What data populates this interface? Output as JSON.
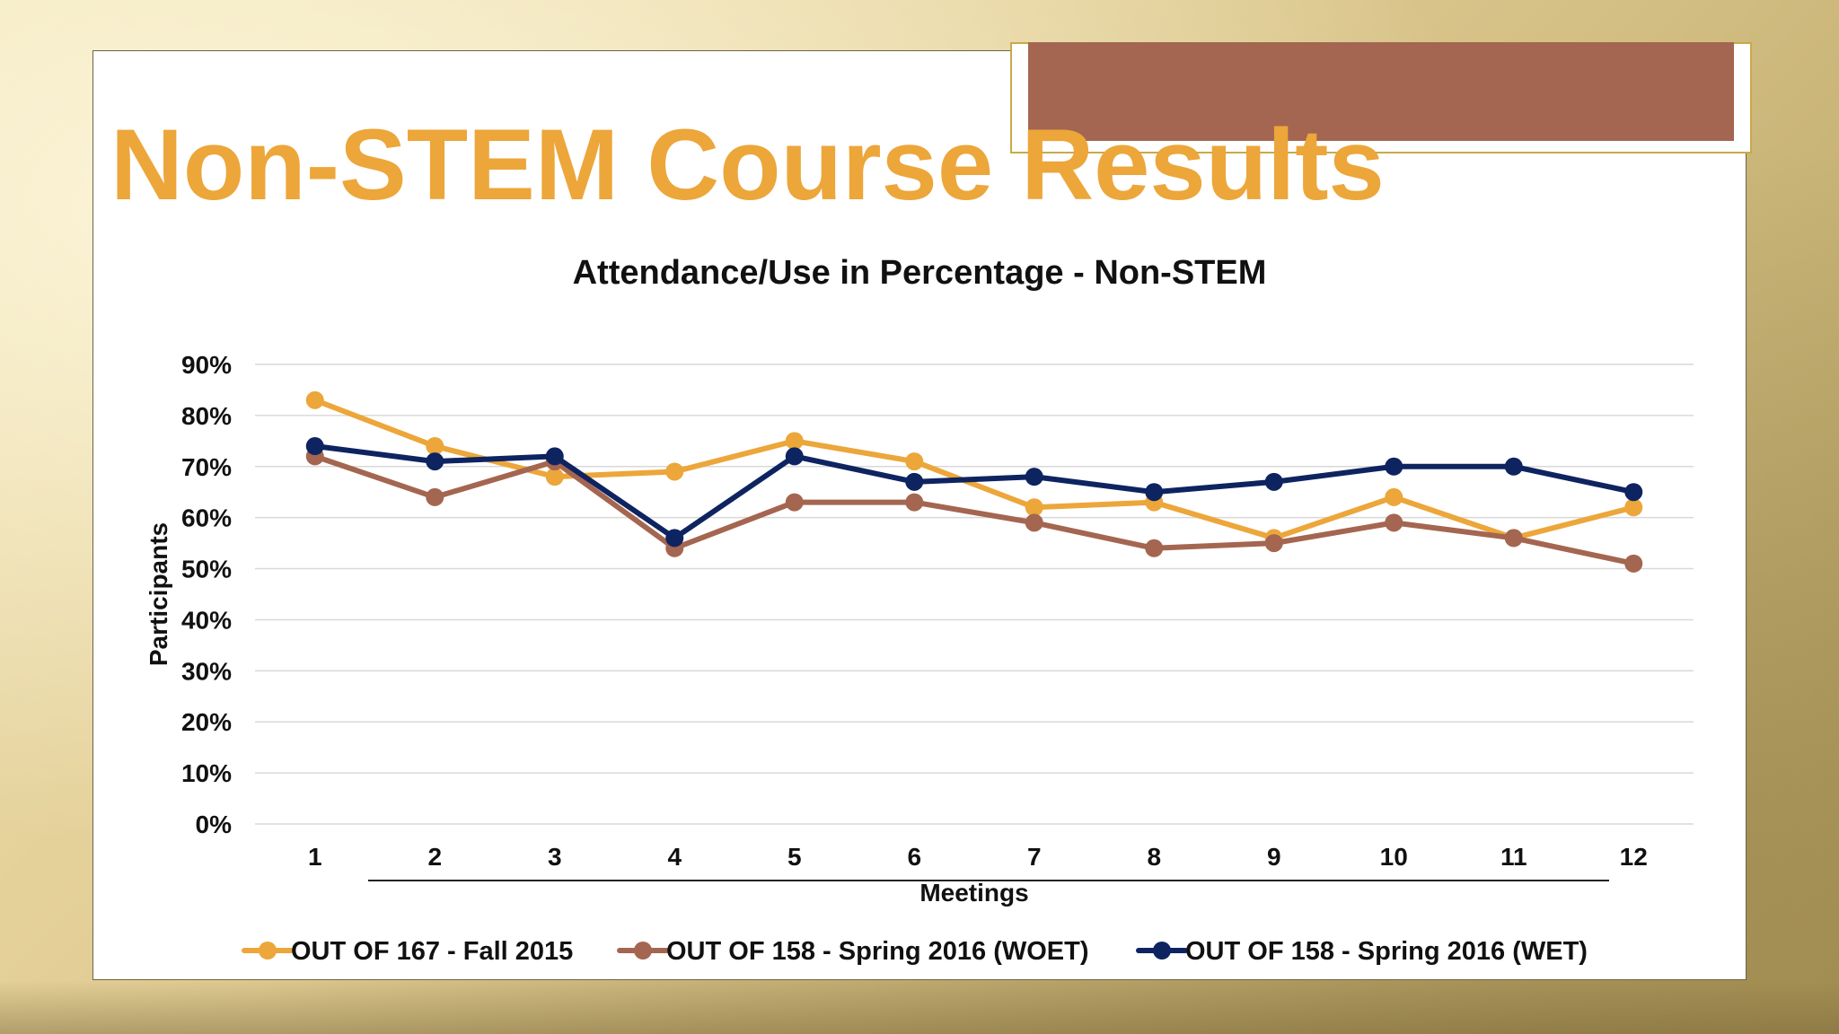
{
  "slide": {
    "title": "Non-STEM Course Results"
  },
  "colors": {
    "title": "#eca63a",
    "accent_bar": "#a46650",
    "accent_frame": "#c9a94a"
  },
  "chart_data": {
    "type": "line",
    "title": "Attendance/Use in Percentage - Non-STEM",
    "xlabel": "Meetings",
    "ylabel": "Participants",
    "categories": [
      "1",
      "2",
      "3",
      "4",
      "5",
      "6",
      "7",
      "8",
      "9",
      "10",
      "11",
      "12"
    ],
    "ylim": [
      0,
      90
    ],
    "yticks": [
      0,
      10,
      20,
      30,
      40,
      50,
      60,
      70,
      80,
      90
    ],
    "ytick_labels": [
      "0%",
      "10%",
      "20%",
      "30%",
      "40%",
      "50%",
      "60%",
      "70%",
      "80%",
      "90%"
    ],
    "grid": true,
    "legend_position": "bottom",
    "series": [
      {
        "name": "OUT OF 167 - Fall 2015",
        "color": "#eca63a",
        "values": [
          83,
          74,
          68,
          69,
          75,
          71,
          62,
          63,
          56,
          64,
          56,
          62
        ]
      },
      {
        "name": "OUT OF 158 - Spring 2016 (WOET)",
        "color": "#a46650",
        "values": [
          72,
          64,
          71,
          54,
          63,
          63,
          59,
          54,
          55,
          59,
          56,
          51
        ]
      },
      {
        "name": "OUT OF 158 - Spring 2016 (WET)",
        "color": "#0e2461",
        "values": [
          74,
          71,
          72,
          56,
          72,
          67,
          68,
          65,
          67,
          70,
          70,
          65
        ]
      }
    ]
  }
}
